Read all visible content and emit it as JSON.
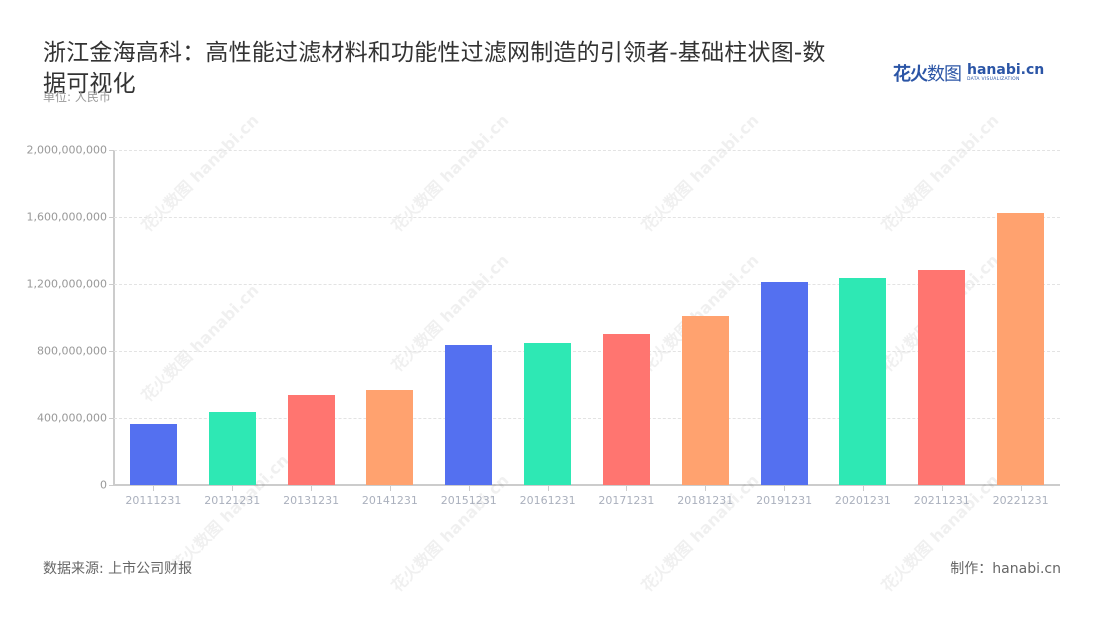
{
  "header": {
    "title": "浙江金海高科：高性能过滤材料和功能性过滤网制造的引领者-基础柱状图-数据可视化",
    "unit": "单位: 人民币"
  },
  "logo": {
    "cn_bold": "花火",
    "cn_thin": "数图",
    "en": "hanabi.cn",
    "en_sub": "DATA VISUALIZATION"
  },
  "footer": {
    "source": "数据来源: 上市公司财报",
    "credit": "制作：hanabi.cn"
  },
  "watermark": "花火数图 hanabi.cn",
  "colors": [
    "#5470f0",
    "#2ee8b4",
    "#ff7570",
    "#ffa26f"
  ],
  "chart_data": {
    "type": "bar",
    "title": "浙江金海高科：高性能过滤材料和功能性过滤网制造的引领者-基础柱状图-数据可视化",
    "xlabel": "",
    "ylabel": "单位: 人民币",
    "ylim": [
      0,
      2000000000
    ],
    "yticks": [
      "0",
      "400,000,000",
      "800,000,000",
      "1,200,000,000",
      "1,600,000,000",
      "2,000,000,000"
    ],
    "grid": true,
    "legend": "none",
    "categories": [
      "20111231",
      "20121231",
      "20131231",
      "20141231",
      "20151231",
      "20161231",
      "20171231",
      "20181231",
      "20191231",
      "20201231",
      "20211231",
      "20221231"
    ],
    "values": [
      365000000,
      435000000,
      535000000,
      570000000,
      835000000,
      850000000,
      900000000,
      1010000000,
      1210000000,
      1235000000,
      1285000000,
      1625000000
    ]
  }
}
